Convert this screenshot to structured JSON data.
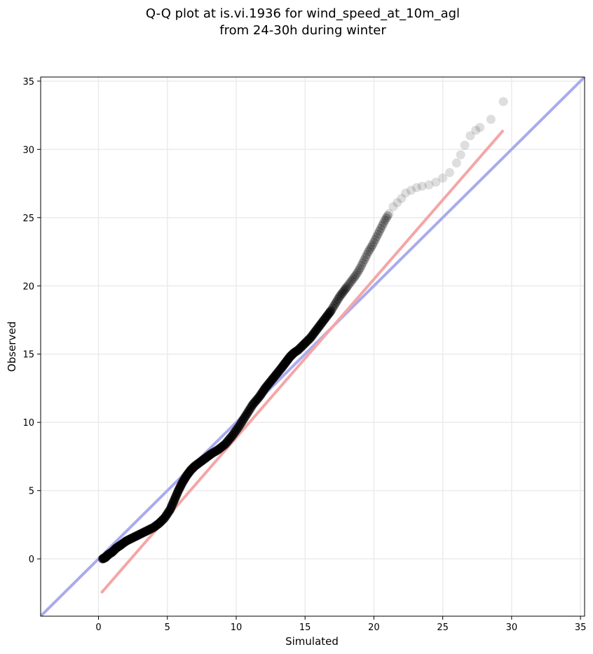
{
  "chart_data": {
    "type": "scatter",
    "title_lines": [
      "Q-Q plot at is.vi.1936 for wind_speed_at_10m_agl",
      "from 24-30h during winter"
    ],
    "xlabel": "Simulated",
    "ylabel": "Observed",
    "xlim": [
      -4.2,
      35.3
    ],
    "ylim": [
      -4.2,
      35.3
    ],
    "x_ticks": [
      0,
      5,
      10,
      15,
      20,
      25,
      30,
      35
    ],
    "y_ticks": [
      0,
      5,
      10,
      15,
      20,
      25,
      30,
      35
    ],
    "grid": true,
    "reference_line": {
      "name": "1:1",
      "color": "#aaaaee",
      "x": [
        -4.2,
        35.3
      ],
      "y": [
        -4.2,
        35.3
      ]
    },
    "fit_line": {
      "color": "#f4a6a6",
      "x": [
        0.2,
        29.4
      ],
      "y": [
        -2.5,
        31.4
      ]
    },
    "point_color": "#000000",
    "quantiles": {
      "x": [
        0.3,
        0.5,
        0.7,
        1.0,
        1.3,
        1.6,
        2.0,
        2.4,
        2.8,
        3.2,
        3.6,
        4.0,
        4.4,
        4.8,
        5.2,
        5.5,
        5.8,
        6.1,
        6.4,
        6.7,
        7.0,
        7.4,
        7.8,
        8.2,
        8.7,
        9.2,
        9.7,
        10.2,
        10.7,
        11.2,
        11.7,
        12.1,
        12.5,
        12.9,
        13.3,
        13.6,
        13.9,
        14.2,
        14.5,
        14.8,
        15.1,
        15.4,
        15.7,
        16.0,
        16.3,
        16.6,
        16.9,
        17.2,
        17.5,
        17.8,
        18.1,
        18.4,
        18.7,
        19.0,
        19.3,
        19.6,
        19.9,
        20.2,
        20.5,
        20.8,
        21.1,
        21.4,
        21.7,
        22.0,
        22.3,
        22.7,
        23.1,
        23.5,
        24.0,
        24.5,
        25.0,
        25.5,
        26.0,
        26.3,
        26.6,
        27.0,
        27.4,
        27.7,
        28.5,
        29.4
      ],
      "y": [
        0.0,
        0.1,
        0.3,
        0.5,
        0.8,
        1.0,
        1.3,
        1.5,
        1.7,
        1.9,
        2.1,
        2.3,
        2.6,
        3.0,
        3.6,
        4.3,
        5.0,
        5.6,
        6.1,
        6.5,
        6.8,
        7.1,
        7.4,
        7.7,
        8.0,
        8.4,
        9.0,
        9.7,
        10.5,
        11.3,
        11.9,
        12.5,
        13.0,
        13.5,
        14.0,
        14.4,
        14.8,
        15.1,
        15.3,
        15.6,
        15.9,
        16.2,
        16.6,
        17.0,
        17.4,
        17.8,
        18.2,
        18.7,
        19.2,
        19.6,
        20.0,
        20.4,
        20.8,
        21.3,
        21.9,
        22.5,
        23.0,
        23.6,
        24.2,
        24.8,
        25.3,
        25.8,
        26.1,
        26.4,
        26.8,
        27.0,
        27.2,
        27.3,
        27.4,
        27.6,
        27.9,
        28.3,
        29.0,
        29.6,
        30.3,
        31.0,
        31.4,
        31.6,
        32.2,
        33.5
      ]
    }
  }
}
